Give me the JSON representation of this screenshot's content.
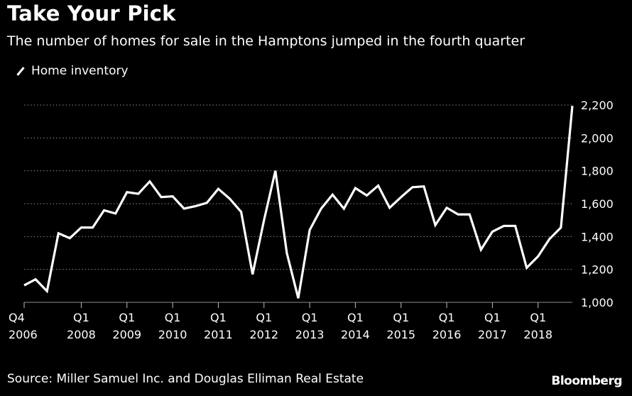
{
  "chart_data": {
    "type": "line",
    "title": "Take Your Pick",
    "subtitle": "The number of homes for sale in the Hamptons jumped in the fourth quarter",
    "series": [
      {
        "name": "Home inventory",
        "color": "#ffffff",
        "values": [
          1103,
          1140,
          1068,
          1420,
          1390,
          1455,
          1455,
          1560,
          1540,
          1670,
          1660,
          1735,
          1640,
          1645,
          1570,
          1585,
          1605,
          1690,
          1630,
          1550,
          1170,
          1500,
          1800,
          1300,
          1025,
          1440,
          1570,
          1655,
          1570,
          1695,
          1650,
          1710,
          1575,
          1640,
          1700,
          1705,
          1470,
          1575,
          1535,
          1535,
          1320,
          1430,
          1465,
          1465,
          1210,
          1280,
          1385,
          1455,
          2195
        ]
      }
    ],
    "x_start": "Q4 2006",
    "x_end": "Q4 2018",
    "x_tick_labels": [
      {
        "quarter": "Q4",
        "year": "2006"
      },
      {
        "quarter": "Q1",
        "year": "2008"
      },
      {
        "quarter": "Q1",
        "year": "2009"
      },
      {
        "quarter": "Q1",
        "year": "2010"
      },
      {
        "quarter": "Q1",
        "year": "2011"
      },
      {
        "quarter": "Q1",
        "year": "2012"
      },
      {
        "quarter": "Q1",
        "year": "2013"
      },
      {
        "quarter": "Q1",
        "year": "2014"
      },
      {
        "quarter": "Q1",
        "year": "2015"
      },
      {
        "quarter": "Q1",
        "year": "2016"
      },
      {
        "quarter": "Q1",
        "year": "2017"
      },
      {
        "quarter": "Q1",
        "year": "2018"
      }
    ],
    "x_tick_quarters": [
      "2006-Q4",
      "2008-Q1",
      "2009-Q1",
      "2010-Q1",
      "2011-Q1",
      "2012-Q1",
      "2013-Q1",
      "2014-Q1",
      "2015-Q1",
      "2016-Q1",
      "2017-Q1",
      "2018-Q1"
    ],
    "y_ticks": [
      1000,
      1200,
      1400,
      1600,
      1800,
      2000,
      2200
    ],
    "y_tick_labels": [
      "1,000",
      "1,200",
      "1,400",
      "1,600",
      "1,800",
      "2,000",
      "2,200"
    ],
    "ylim": [
      1000,
      2200
    ],
    "grid": true,
    "legend_position": "top-left",
    "source": "Source: Miller Samuel Inc. and Douglas Elliman Real Estate",
    "brand": "Bloomberg"
  }
}
